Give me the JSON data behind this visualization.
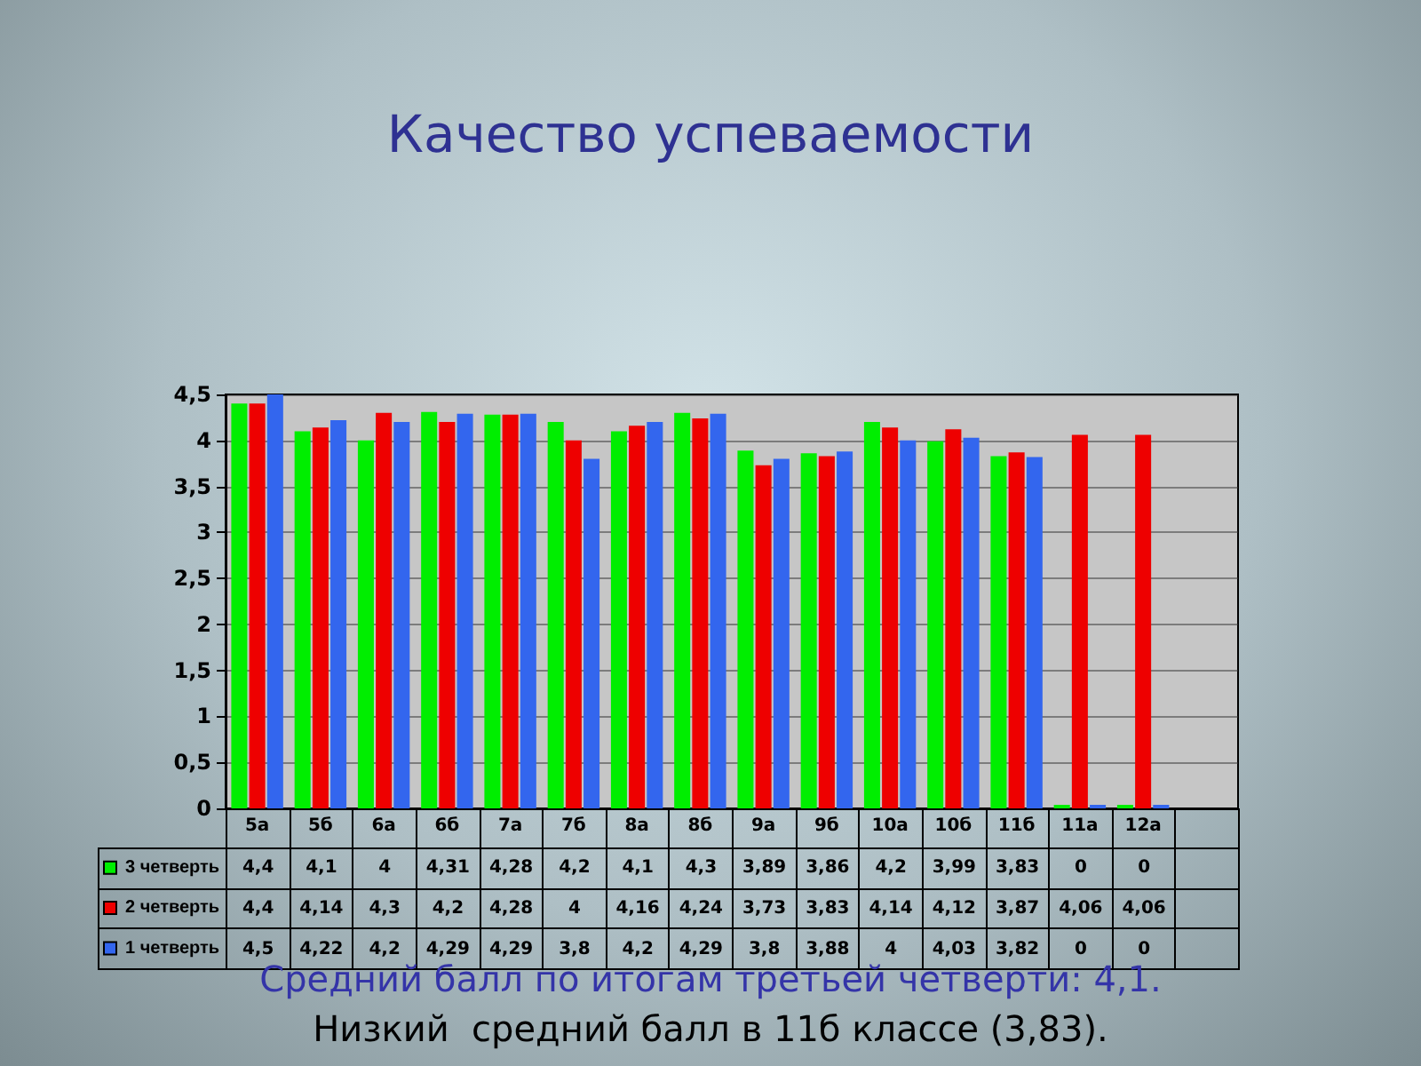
{
  "chart_data": {
    "type": "bar",
    "title": "Качество успеваемости",
    "categories": [
      "5а",
      "5б",
      "6а",
      "6б",
      "7а",
      "7б",
      "8а",
      "8б",
      "9а",
      "9б",
      "10а",
      "10б",
      "11б",
      "11а",
      "12а",
      null
    ],
    "series": [
      {
        "name": "3 четверть",
        "color": "#00ee00",
        "values": [
          4.4,
          4.1,
          4,
          4.31,
          4.28,
          4.2,
          4.1,
          4.3,
          3.89,
          3.86,
          4.2,
          3.99,
          3.83,
          0,
          0,
          null
        ],
        "value_labels": [
          "4,4",
          "4,1",
          "4",
          "4,31",
          "4,28",
          "4,2",
          "4,1",
          "4,3",
          "3,89",
          "3,86",
          "4,2",
          "3,99",
          "3,83",
          "0",
          "0",
          null
        ]
      },
      {
        "name": "2 четверть",
        "color": "#ee0000",
        "values": [
          4.4,
          4.14,
          4.3,
          4.2,
          4.28,
          4,
          4.16,
          4.24,
          3.73,
          3.83,
          4.14,
          4.12,
          3.87,
          4.06,
          4.06,
          null
        ],
        "value_labels": [
          "4,4",
          "4,14",
          "4,3",
          "4,2",
          "4,28",
          "4",
          "4,16",
          "4,24",
          "3,73",
          "3,83",
          "4,14",
          "4,12",
          "3,87",
          "4,06",
          "4,06",
          null
        ]
      },
      {
        "name": "1 четверть",
        "color": "#3366ee",
        "values": [
          4.5,
          4.22,
          4.2,
          4.29,
          4.29,
          3.8,
          4.2,
          4.29,
          3.8,
          3.88,
          4,
          4.03,
          3.82,
          0,
          0,
          null
        ],
        "value_labels": [
          "4,5",
          "4,22",
          "4,2",
          "4,29",
          "4,29",
          "3,8",
          "4,2",
          "4,29",
          "3,8",
          "3,88",
          "4",
          "4,03",
          "3,82",
          "0",
          "0",
          null
        ]
      }
    ],
    "ylim": [
      0,
      4.5
    ],
    "yticks": [
      0,
      {
        "value": 0.5,
        "label": "0,5"
      },
      1,
      {
        "value": 1.5,
        "label": "1,5"
      },
      2,
      {
        "value": 2.5,
        "label": "2,5"
      },
      3,
      {
        "value": 3.5,
        "label": "3,5"
      },
      4,
      {
        "value": 4.5,
        "label": "4,5"
      }
    ],
    "grid": "y",
    "legend": "bottom left",
    "annotations": [
      "Средний балл по итогам третьей четверти: 4,1.",
      "Низкий  средний балл в 11б классе (3,83)."
    ]
  }
}
